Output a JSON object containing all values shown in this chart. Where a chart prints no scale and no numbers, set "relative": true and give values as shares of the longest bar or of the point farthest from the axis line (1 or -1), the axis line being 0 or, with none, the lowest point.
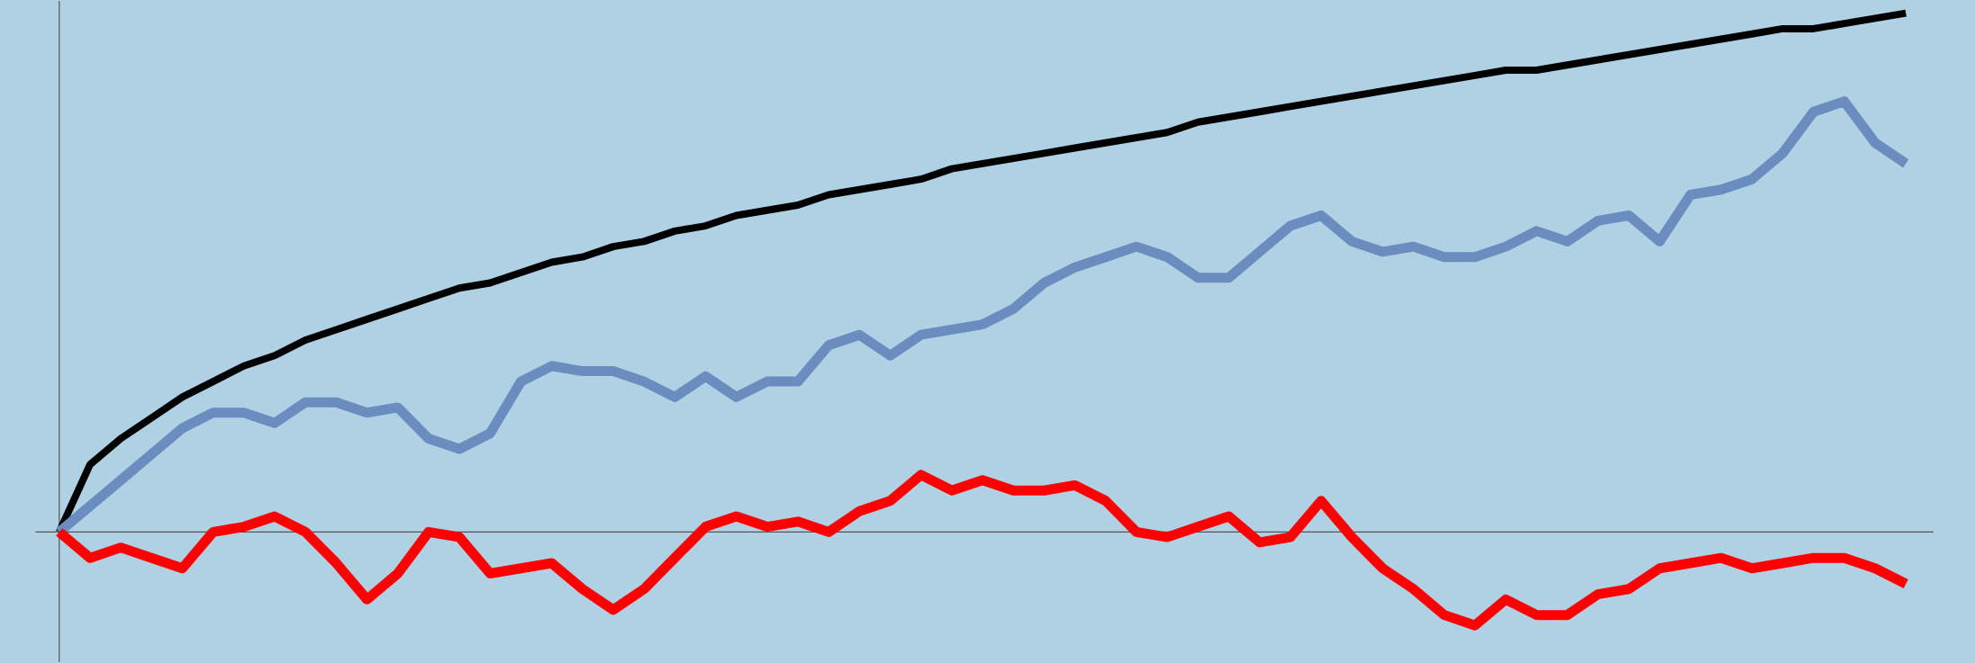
{
  "chart_data": {
    "type": "line",
    "relative": true,
    "grid": false,
    "marker": "none",
    "line_style": "solid",
    "categories": [
      null,
      null,
      null,
      null,
      null,
      null,
      null,
      null,
      null,
      null,
      null,
      null,
      null,
      null,
      null,
      null,
      null,
      null,
      null,
      null,
      null,
      null,
      null,
      null,
      null,
      null,
      null,
      null,
      null,
      null,
      null,
      null,
      null,
      null,
      null,
      null,
      null,
      null,
      null,
      null,
      null,
      null,
      null,
      null,
      null,
      null,
      null,
      null,
      null,
      null,
      null,
      null,
      null,
      null,
      null,
      null,
      null,
      null,
      null,
      null,
      null
    ],
    "series": [
      {
        "color": "#000000",
        "values": [
          0,
          0.13,
          0.18,
          0.22,
          0.26,
          0.29,
          0.32,
          0.34,
          0.37,
          0.39,
          0.41,
          0.43,
          0.45,
          0.47,
          0.48,
          0.5,
          0.52,
          0.53,
          0.55,
          0.56,
          0.58,
          0.59,
          0.61,
          0.62,
          0.63,
          0.65,
          0.66,
          0.67,
          0.68,
          0.7,
          0.71,
          0.72,
          0.73,
          0.74,
          0.75,
          0.76,
          0.77,
          0.79,
          0.8,
          0.81,
          0.82,
          0.83,
          0.84,
          0.85,
          0.86,
          0.87,
          0.88,
          0.89,
          0.89,
          0.9,
          0.91,
          0.92,
          0.93,
          0.94,
          0.95,
          0.96,
          0.97,
          0.97,
          0.98,
          0.99,
          1
        ]
      },
      {
        "color": "#6a8cbf",
        "values": [
          0,
          0.05,
          0.1,
          0.15,
          0.2,
          0.23,
          0.23,
          0.21,
          0.25,
          0.25,
          0.23,
          0.24,
          0.18,
          0.16,
          0.19,
          0.29,
          0.32,
          0.31,
          0.31,
          0.29,
          0.26,
          0.3,
          0.26,
          0.29,
          0.29,
          0.36,
          0.38,
          0.34,
          0.38,
          0.39,
          0.4,
          0.43,
          0.48,
          0.51,
          0.53,
          0.55,
          0.53,
          0.49,
          0.49,
          0.54,
          0.59,
          0.61,
          0.56,
          0.54,
          0.55,
          0.53,
          0.53,
          0.55,
          0.58,
          0.56,
          0.6,
          0.61,
          0.56,
          0.65,
          0.66,
          0.68,
          0.73,
          0.81,
          0.83,
          0.75,
          0.71
        ]
      },
      {
        "color": "#ff0000",
        "values": [
          0,
          -0.05,
          -0.03,
          -0.05,
          -0.07,
          0,
          0.01,
          0.03,
          0,
          -0.06,
          -0.13,
          -0.08,
          0,
          -0.01,
          -0.08,
          -0.07,
          -0.06,
          -0.11,
          -0.15,
          -0.11,
          -0.05,
          0.01,
          0.03,
          0.01,
          0.02,
          0,
          0.04,
          0.06,
          0.11,
          0.08,
          0.1,
          0.08,
          0.08,
          0.09,
          0.06,
          0,
          -0.01,
          0.01,
          0.03,
          -0.02,
          -0.01,
          0.06,
          -0.01,
          -0.07,
          -0.11,
          -0.16,
          -0.18,
          -0.13,
          -0.16,
          -0.16,
          -0.12,
          -0.11,
          -0.07,
          -0.06,
          -0.05,
          -0.07,
          -0.06,
          -0.05,
          -0.05,
          -0.07,
          -0.1
        ]
      }
    ]
  }
}
